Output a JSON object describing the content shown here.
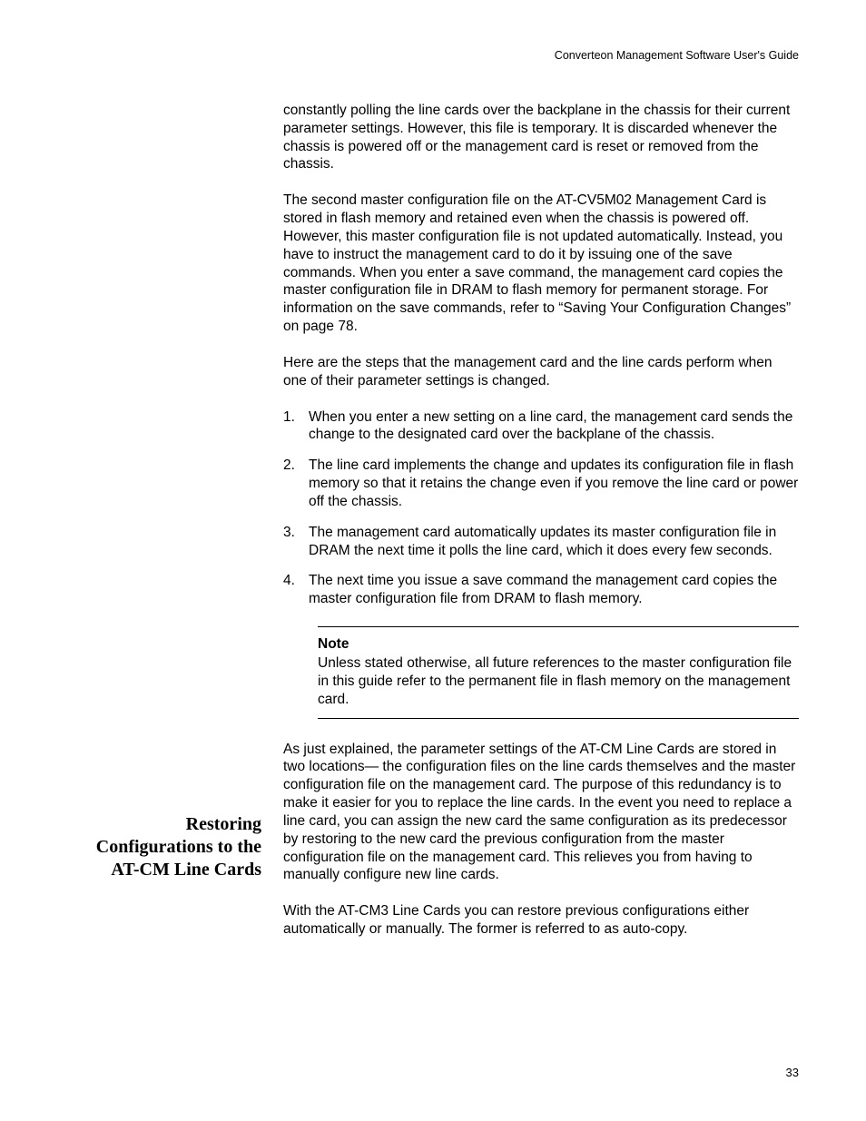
{
  "header": "Converteon Management Software User's Guide",
  "para1": "constantly polling the line cards over the backplane in the chassis for their current parameter settings. However, this file is temporary. It is discarded whenever the chassis is powered off or the management card is reset or removed from the chassis.",
  "para2": "The second master configuration file on the AT-CV5M02 Management Card is stored in flash memory and retained even when the chassis is powered off. However, this master configuration file is not updated automatically. Instead, you have to instruct the management card to do it by issuing one of the save commands. When you enter a save command, the management card copies the master configuration file in DRAM to flash memory for permanent storage. For information on the save commands, refer to “Saving Your Configuration Changes” on page 78.",
  "para3": "Here are the steps that the management card and the line cards perform when one of their parameter settings is changed.",
  "list": {
    "item1_num": "1.",
    "item1": "When you enter a new setting on a line card, the management card sends the change to the designated card over the backplane of the chassis.",
    "item2_num": "2.",
    "item2": "The line card implements the change and updates its configuration file in flash memory so that it retains the change even if you remove the line card or power off the chassis.",
    "item3_num": "3.",
    "item3": "The management card automatically updates its master configuration file in DRAM the next time it polls the line card, which it does every few seconds.",
    "item4_num": "4.",
    "item4": "The next time you issue a save command the management card copies the master configuration file from DRAM to flash memory."
  },
  "note": {
    "title": "Note",
    "text": "Unless stated otherwise, all future references to the master configuration file in this guide refer to the permanent file in flash memory on the management card."
  },
  "sideHeading": "Restoring Configurations to the AT-CM Line Cards",
  "para4": "As just explained, the parameter settings of the AT-CM Line Cards are stored in two locations— the configuration files on the line cards themselves and the master configuration file on the management card. The purpose of this redundancy is to make it easier for you to replace the line cards. In the event you need to replace a line card, you can assign the new card the same configuration as its predecessor by restoring to the new card the previous configuration from the master configuration file on the management card. This relieves you from having to manually configure new line cards.",
  "para5": "With the AT-CM3 Line Cards you can restore previous configurations either automatically or manually. The former is referred to as auto-copy.",
  "pageNum": "33",
  "layout": {
    "sideHeadingTop": 896
  }
}
